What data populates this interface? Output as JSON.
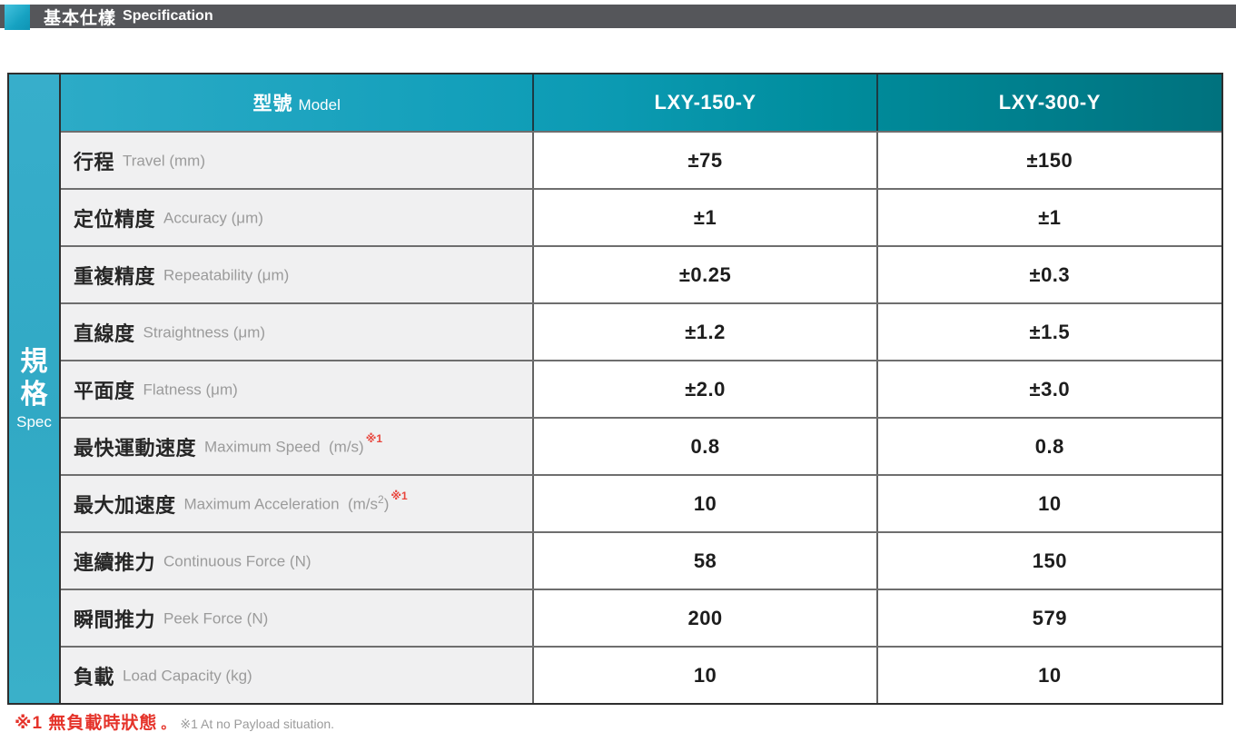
{
  "section": {
    "title_zh": "基本仕樣",
    "title_en": "Specification"
  },
  "table": {
    "side_label_zh": "規格",
    "side_label_en": "Spec",
    "header": {
      "model_zh": "型號",
      "model_en": "Model",
      "columns": [
        "LXY-150-Y",
        "LXY-300-Y"
      ]
    },
    "rows": [
      {
        "zh": "行程",
        "en_pre": "Travel (mm)",
        "v1": "±75",
        "v2": "±150"
      },
      {
        "zh": "定位精度",
        "en_pre": "Accuracy (μm)",
        "v1": "±1",
        "v2": "±1"
      },
      {
        "zh": "重複精度",
        "en_pre": "Repeatability (μm)",
        "v1": "±0.25",
        "v2": "±0.3"
      },
      {
        "zh": "直線度",
        "en_pre": "Straightness (μm)",
        "v1": "±1.2",
        "v2": "±1.5"
      },
      {
        "zh": "平面度",
        "en_pre": "Flatness (μm)",
        "v1": "±2.0",
        "v2": "±3.0"
      },
      {
        "zh": "最快運動速度",
        "en_pre": "Maximum Speed  (m/s)",
        "note": "※1",
        "v1": "0.8",
        "v2": "0.8"
      },
      {
        "zh": "最大加速度",
        "en_pre": "Maximum Acceleration  (m/s",
        "unit_sup": "2",
        "en_close": ")",
        "note": "※1",
        "v1": "10",
        "v2": "10"
      },
      {
        "zh": "連續推力",
        "en_pre": "Continuous Force (N)",
        "v1": "58",
        "v2": "150"
      },
      {
        "zh": "瞬間推力",
        "en_pre": "Peek Force (N)",
        "v1": "200",
        "v2": "579"
      },
      {
        "zh": "負載",
        "en_pre": "Load Capacity (kg)",
        "v1": "10",
        "v2": "10"
      }
    ]
  },
  "footnote": {
    "zh": "※1 無負載時狀態",
    "period": "。",
    "en": "※1 At no Payload situation."
  },
  "colors": {
    "accent_teal": "#1aa3bf",
    "teal_dark": "#00727e",
    "bar_gray": "#55565a",
    "note_red": "#e5332a",
    "sub_gray": "#9b9b9b"
  }
}
